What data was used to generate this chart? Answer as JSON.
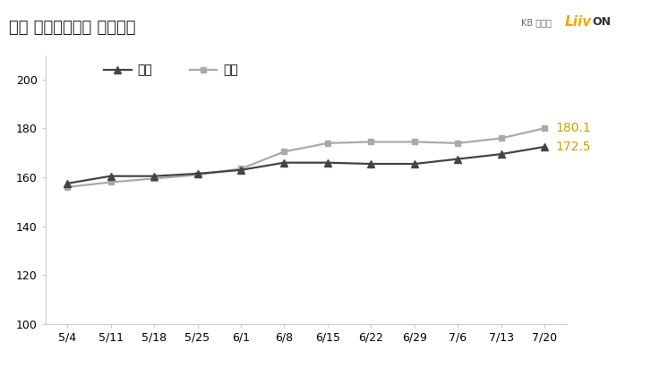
{
  "title": "서울 전세수급동향 주간추이",
  "x_labels": [
    "5/4",
    "5/11",
    "5/18",
    "5/25",
    "6/1",
    "6/8",
    "6/15",
    "6/22",
    "6/29",
    "7/6",
    "7/13",
    "7/20"
  ],
  "jeonkuk": [
    157.5,
    160.5,
    160.5,
    161.5,
    163.0,
    166.0,
    166.0,
    165.5,
    165.5,
    167.5,
    169.5,
    172.5
  ],
  "seoul": [
    156.0,
    158.0,
    159.5,
    161.0,
    163.5,
    170.5,
    174.0,
    174.5,
    174.5,
    174.0,
    176.0,
    180.1
  ],
  "jeonkuk_color": "#444444",
  "seoul_color": "#aaaaaa",
  "jeonkuk_label": "전국",
  "seoul_label": "서울",
  "jeonkuk_end_label": "172.5",
  "seoul_end_label": "180.1",
  "end_label_color": "#c8a000",
  "ylim": [
    100,
    210
  ],
  "yticks": [
    100,
    120,
    140,
    160,
    180,
    200
  ],
  "background_color": "#ffffff",
  "title_bg_color": "#e0e0e0",
  "title_fontsize": 13,
  "legend_fontsize": 10,
  "axis_fontsize": 9,
  "kb_text": "KB 부동산",
  "liiv_text_1": "Liiv",
  "liiv_text_2": "ON",
  "kb_color": "#666666",
  "liiv_color": "#f0a800"
}
